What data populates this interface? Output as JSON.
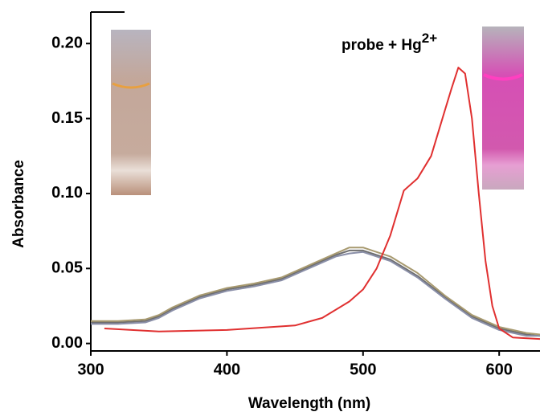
{
  "chart_data": {
    "type": "line",
    "x_label": "Wavelength (nm)",
    "y_label": "Absorbance",
    "annotation": {
      "text": "probe + Hg",
      "superscript": "2+"
    },
    "xlim": [
      300,
      630
    ],
    "ylim": [
      -0.005,
      0.221
    ],
    "xticks": [
      300,
      400,
      500,
      600
    ],
    "yticks": [
      {
        "value": 0,
        "label": "0.00"
      },
      {
        "value": 0.05,
        "label": "0.05"
      },
      {
        "value": 0.1,
        "label": "0.10"
      },
      {
        "value": 0.15,
        "label": "0.15"
      },
      {
        "value": 0.2,
        "label": "0.20"
      }
    ],
    "series": [
      {
        "color": "#6e6e6e",
        "x": [
          300,
          320,
          340,
          350,
          360,
          380,
          400,
          420,
          440,
          460,
          480,
          490,
          500,
          520,
          540,
          560,
          580,
          600,
          620,
          630
        ],
        "values": [
          0.014,
          0.014,
          0.015,
          0.018,
          0.023,
          0.031,
          0.036,
          0.039,
          0.043,
          0.051,
          0.059,
          0.062,
          0.062,
          0.056,
          0.045,
          0.031,
          0.018,
          0.01,
          0.006,
          0.005
        ]
      },
      {
        "color": "#8a8fa8",
        "x": [
          300,
          320,
          340,
          350,
          360,
          380,
          400,
          420,
          440,
          460,
          480,
          490,
          500,
          520,
          540,
          560,
          580,
          600,
          620,
          630
        ],
        "values": [
          0.013,
          0.013,
          0.014,
          0.017,
          0.022,
          0.03,
          0.035,
          0.038,
          0.042,
          0.05,
          0.058,
          0.06,
          0.061,
          0.055,
          0.044,
          0.03,
          0.017,
          0.009,
          0.005,
          0.005
        ]
      },
      {
        "color": "#a89a70",
        "x": [
          300,
          320,
          340,
          350,
          360,
          380,
          400,
          420,
          440,
          460,
          480,
          490,
          500,
          520,
          540,
          560,
          580,
          600,
          620,
          630
        ],
        "values": [
          0.015,
          0.015,
          0.016,
          0.019,
          0.024,
          0.032,
          0.037,
          0.04,
          0.044,
          0.052,
          0.06,
          0.064,
          0.064,
          0.058,
          0.047,
          0.032,
          0.019,
          0.011,
          0.007,
          0.006
        ]
      },
      {
        "color": "#e03030",
        "x": [
          310,
          350,
          400,
          450,
          470,
          490,
          500,
          510,
          520,
          530,
          540,
          550,
          560,
          565,
          570,
          575,
          580,
          585,
          590,
          595,
          600,
          610,
          630
        ],
        "values": [
          0.01,
          0.008,
          0.009,
          0.012,
          0.017,
          0.028,
          0.036,
          0.05,
          0.072,
          0.102,
          0.11,
          0.125,
          0.155,
          0.17,
          0.184,
          0.18,
          0.15,
          0.1,
          0.055,
          0.025,
          0.01,
          0.004,
          0.003
        ]
      }
    ]
  }
}
